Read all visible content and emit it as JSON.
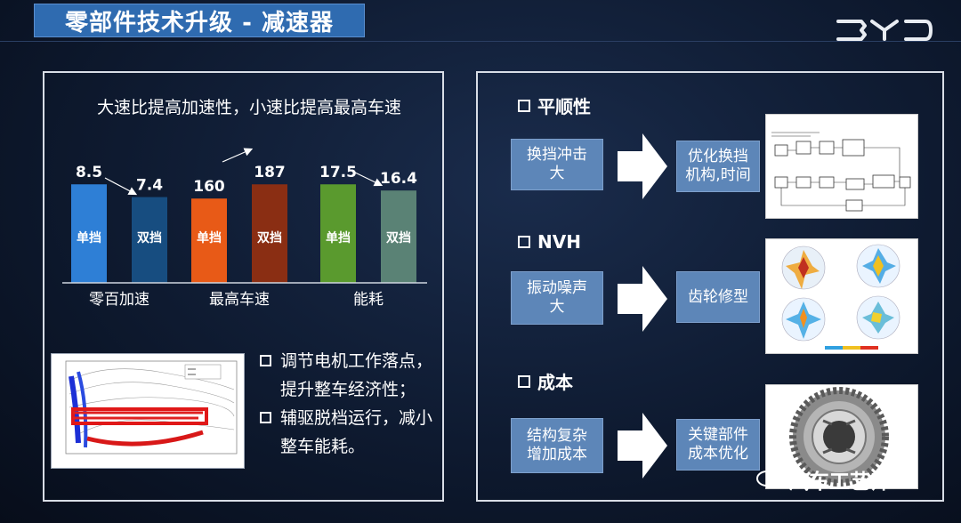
{
  "header": {
    "title": "零部件技术升级 - 减速器",
    "logo_text": "BYD"
  },
  "left": {
    "chart_title": "大速比提高加速性，小速比提高最高车速",
    "bullets": [
      "调节电机工作落点，提升整车经济性；",
      "辅驱脱档运行，减小整车能耗。"
    ]
  },
  "chart_data": {
    "type": "bar",
    "title": "大速比提高加速性，小速比提高最高车速",
    "categories": [
      "零百加速",
      "最高车速",
      "能耗"
    ],
    "series": [
      {
        "name": "单挡",
        "values": [
          8.5,
          160,
          17.5
        ]
      },
      {
        "name": "双挡",
        "values": [
          7.4,
          187,
          16.4
        ]
      }
    ],
    "bar_labels": [
      "单挡",
      "双挡",
      "单挡",
      "双挡",
      "单挡",
      "双挡"
    ],
    "value_labels": [
      "8.5",
      "7.4",
      "160",
      "187",
      "17.5",
      "16.4"
    ],
    "colors": [
      "#2e7fd6",
      "#174d80",
      "#e85a17",
      "#8a2e13",
      "#5a9a2e",
      "#5a8275"
    ],
    "grid": false
  },
  "right": {
    "sections": [
      {
        "heading": "平顺性",
        "problem": "换挡冲击\n大",
        "solution": "优化换挡\n机构,时间"
      },
      {
        "heading": "NVH",
        "problem": "振动噪声\n大",
        "solution": "齿轮修型"
      },
      {
        "heading": "成本",
        "problem": "结构复杂\n增加成本",
        "solution": "关键部件\n成本优化"
      }
    ]
  },
  "watermark": "汽车工艺师",
  "colors": {
    "title_bg": "#2f6bb0",
    "box_bg": "#5d86b8",
    "background": "#0e1a30"
  }
}
